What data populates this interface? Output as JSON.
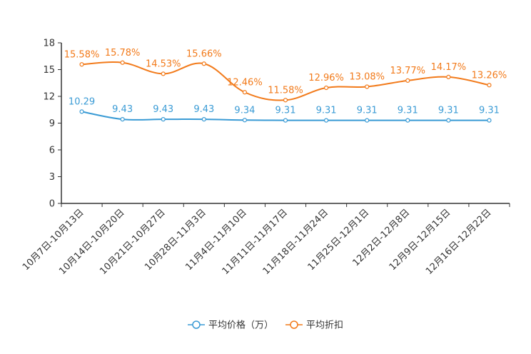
{
  "chart_data": {
    "type": "line",
    "title": "",
    "xlabel": "",
    "ylabel": "",
    "ylim": [
      0,
      18
    ],
    "yticks": [
      0,
      3,
      6,
      9,
      12,
      15,
      18
    ],
    "grid": false,
    "legend_position": "bottom-center",
    "categories": [
      "10月7日-10月13日",
      "10月14日-10月20日",
      "10月21日-10月27日",
      "10月28日-11月3日",
      "11月4日-11月10日",
      "11月11日-11月17日",
      "11月18日-11月24日",
      "11月25日-12月1日",
      "12月2日-12月8日",
      "12月9日-12月15日",
      "12月16日-12月22日"
    ],
    "series": [
      {
        "name": "平均价格（万）",
        "color": "#3a9bd5",
        "values": [
          10.29,
          9.43,
          9.43,
          9.43,
          9.34,
          9.31,
          9.31,
          9.31,
          9.31,
          9.31,
          9.31
        ],
        "labels": [
          "10.29",
          "9.43",
          "9.43",
          "9.43",
          "9.34",
          "9.31",
          "9.31",
          "9.31",
          "9.31",
          "9.31",
          "9.31"
        ]
      },
      {
        "name": "平均折扣",
        "color": "#f27a1a",
        "values": [
          15.58,
          15.78,
          14.53,
          15.66,
          12.46,
          11.58,
          12.96,
          13.08,
          13.77,
          14.17,
          13.26
        ],
        "labels": [
          "15.58%",
          "15.78%",
          "14.53%",
          "15.66%",
          "12.46%",
          "11.58%",
          "12.96%",
          "13.08%",
          "13.77%",
          "14.17%",
          "13.26%"
        ]
      }
    ]
  }
}
